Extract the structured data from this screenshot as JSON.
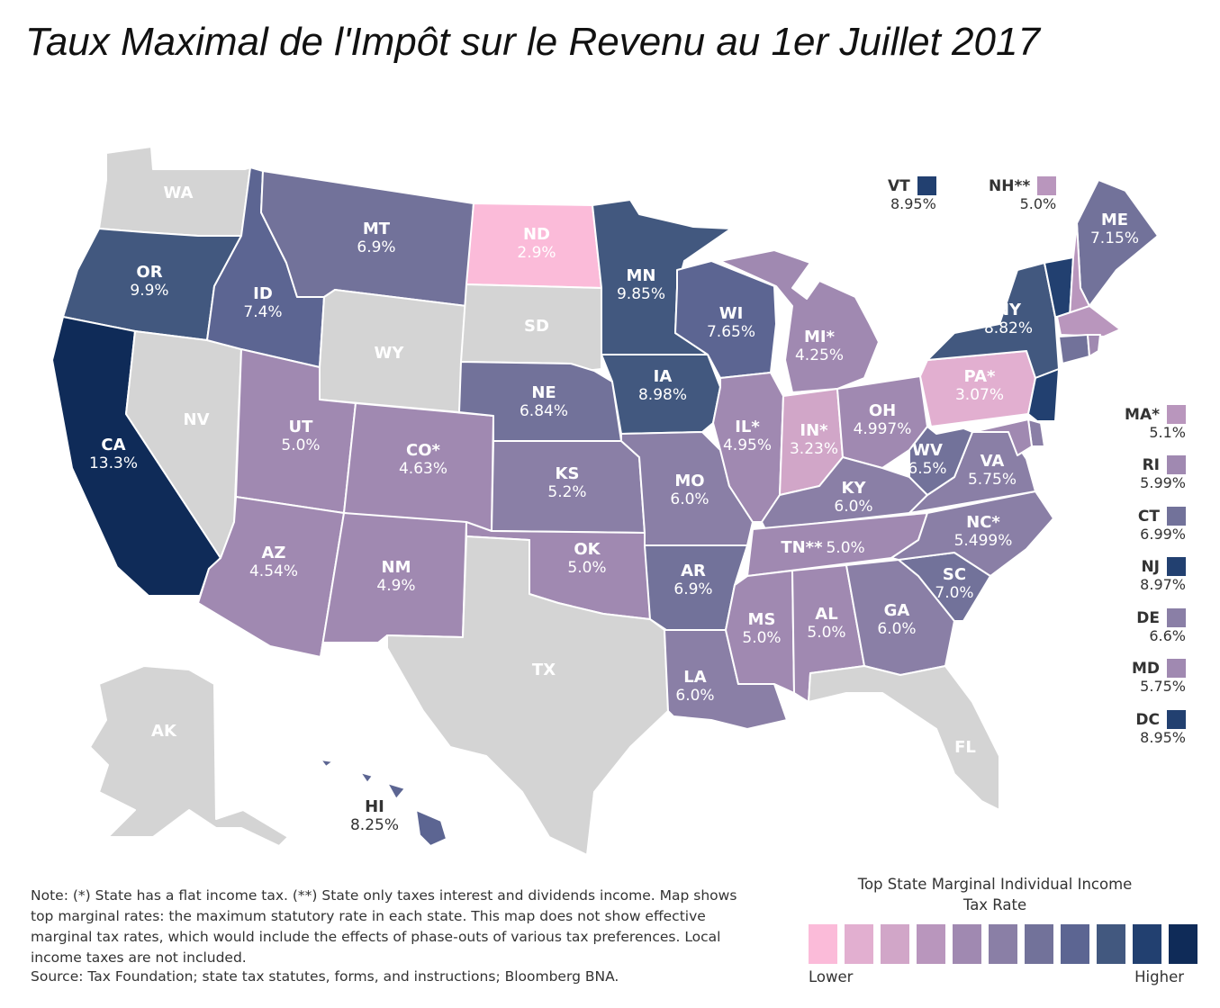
{
  "title": "Taux Maximal de l'Impôt sur le Revenu au 1er Juillet 2017",
  "colors": {
    "none": "#d4d4d4",
    "scale": [
      "#fbbbd9",
      "#e2afd0",
      "#d1a6c8",
      "#b996bd",
      "#a089b1",
      "#8a7fa6",
      "#72729a",
      "#5c6592",
      "#42587f",
      "#224070",
      "#0f2b58"
    ]
  },
  "states": {
    "WA": {
      "abbr": "WA",
      "rate": ""
    },
    "OR": {
      "abbr": "OR",
      "rate": "9.9%"
    },
    "CA": {
      "abbr": "CA",
      "rate": "13.3%"
    },
    "NV": {
      "abbr": "NV",
      "rate": ""
    },
    "ID": {
      "abbr": "ID",
      "rate": "7.4%"
    },
    "MT": {
      "abbr": "MT",
      "rate": "6.9%"
    },
    "WY": {
      "abbr": "WY",
      "rate": ""
    },
    "UT": {
      "abbr": "UT",
      "rate": "5.0%"
    },
    "AZ": {
      "abbr": "AZ",
      "rate": "4.54%"
    },
    "CO": {
      "abbr": "CO*",
      "rate": "4.63%"
    },
    "NM": {
      "abbr": "NM",
      "rate": "4.9%"
    },
    "ND": {
      "abbr": "ND",
      "rate": "2.9%"
    },
    "SD": {
      "abbr": "SD",
      "rate": ""
    },
    "NE": {
      "abbr": "NE",
      "rate": "6.84%"
    },
    "KS": {
      "abbr": "KS",
      "rate": "5.2%"
    },
    "OK": {
      "abbr": "OK",
      "rate": "5.0%"
    },
    "TX": {
      "abbr": "TX",
      "rate": ""
    },
    "MN": {
      "abbr": "MN",
      "rate": "9.85%"
    },
    "IA": {
      "abbr": "IA",
      "rate": "8.98%"
    },
    "MO": {
      "abbr": "MO",
      "rate": "6.0%"
    },
    "AR": {
      "abbr": "AR",
      "rate": "6.9%"
    },
    "LA": {
      "abbr": "LA",
      "rate": "6.0%"
    },
    "WI": {
      "abbr": "WI",
      "rate": "7.65%"
    },
    "IL": {
      "abbr": "IL*",
      "rate": "4.95%"
    },
    "MI": {
      "abbr": "MI*",
      "rate": "4.25%"
    },
    "IN": {
      "abbr": "IN*",
      "rate": "3.23%"
    },
    "OH": {
      "abbr": "OH",
      "rate": "4.997%"
    },
    "KY": {
      "abbr": "KY",
      "rate": "6.0%"
    },
    "TN": {
      "abbr": "TN**",
      "rate": "5.0%"
    },
    "MS": {
      "abbr": "MS",
      "rate": "5.0%"
    },
    "AL": {
      "abbr": "AL",
      "rate": "5.0%"
    },
    "GA": {
      "abbr": "GA",
      "rate": "6.0%"
    },
    "FL": {
      "abbr": "FL",
      "rate": ""
    },
    "SC": {
      "abbr": "SC",
      "rate": "7.0%"
    },
    "NC": {
      "abbr": "NC*",
      "rate": "5.499%"
    },
    "VA": {
      "abbr": "VA",
      "rate": "5.75%"
    },
    "WV": {
      "abbr": "WV",
      "rate": "6.5%"
    },
    "PA": {
      "abbr": "PA*",
      "rate": "3.07%"
    },
    "NY": {
      "abbr": "NY",
      "rate": "8.82%"
    },
    "ME": {
      "abbr": "ME",
      "rate": "7.15%"
    },
    "AK": {
      "abbr": "AK",
      "rate": ""
    },
    "HI": {
      "abbr": "HI",
      "rate": "8.25%"
    }
  },
  "small_states": [
    {
      "abbr": "VT",
      "rate": "8.95%",
      "color": "#224070"
    },
    {
      "abbr": "NH**",
      "rate": "5.0%",
      "color": "#b996bd"
    },
    {
      "abbr": "MA*",
      "rate": "5.1%",
      "color": "#b996bd"
    },
    {
      "abbr": "RI",
      "rate": "5.99%",
      "color": "#a089b1"
    },
    {
      "abbr": "CT",
      "rate": "6.99%",
      "color": "#72729a"
    },
    {
      "abbr": "NJ",
      "rate": "8.97%",
      "color": "#224070"
    },
    {
      "abbr": "DE",
      "rate": "6.6%",
      "color": "#8a7fa6"
    },
    {
      "abbr": "MD",
      "rate": "5.75%",
      "color": "#a089b1"
    },
    {
      "abbr": "DC",
      "rate": "8.95%",
      "color": "#224070"
    }
  ],
  "note": "Note: (*) State has a flat income tax. (**) State only taxes interest and dividends income. Map shows top marginal rates: the maximum statutory rate in each state. This map does not show effective marginal tax rates, which would include the effects of phase-outs of various tax preferences. Local income taxes are not included.",
  "source": "Source: Tax Foundation; state tax statutes, forms, and instructions; Bloomberg BNA.",
  "legend": {
    "title": "Top State Marginal Individual Income Tax Rate",
    "low": "Lower",
    "high": "Higher"
  }
}
